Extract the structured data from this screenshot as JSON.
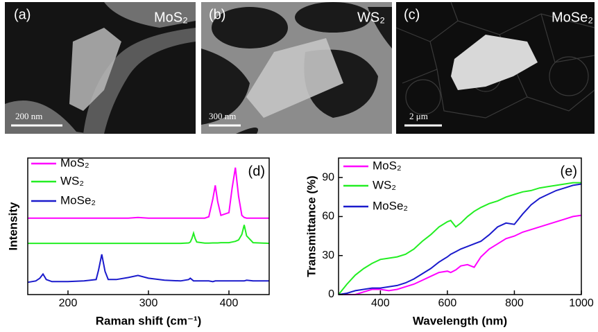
{
  "images": [
    {
      "label": "(a)",
      "material": "MoS₂",
      "scale_bar": "200 nm"
    },
    {
      "label": "(b)",
      "material": "WS₂",
      "scale_bar": "300 nm"
    },
    {
      "label": "(c)",
      "material": "MoSe₂",
      "scale_bar": "2 μm"
    }
  ],
  "chart_data": [
    {
      "type": "line",
      "panel_label": "(d)",
      "x_label": "Raman shift (cm⁻¹)",
      "y_label": "Intensity",
      "xlim": [
        150,
        450
      ],
      "xticks": [
        200,
        300,
        400
      ],
      "ylim": [
        0,
        1
      ],
      "legend": "upper-left",
      "x": [
        150,
        160,
        165,
        169,
        173,
        180,
        200,
        220,
        235,
        238,
        242,
        246,
        250,
        260,
        275,
        287,
        300,
        320,
        340,
        350,
        352,
        354,
        356,
        358,
        360,
        370,
        375,
        380,
        383,
        386,
        390,
        400,
        404,
        408,
        412,
        416,
        419,
        422,
        430,
        450
      ],
      "series": [
        {
          "name": "MoS₂",
          "color": "#ff00ff",
          "values": [
            0.56,
            0.56,
            0.56,
            0.56,
            0.56,
            0.56,
            0.56,
            0.56,
            0.56,
            0.56,
            0.56,
            0.56,
            0.56,
            0.56,
            0.56,
            0.565,
            0.56,
            0.56,
            0.56,
            0.56,
            0.56,
            0.56,
            0.56,
            0.56,
            0.56,
            0.56,
            0.57,
            0.7,
            0.8,
            0.68,
            0.58,
            0.6,
            0.78,
            0.93,
            0.72,
            0.58,
            0.565,
            0.56,
            0.56,
            0.56
          ]
        },
        {
          "name": "WS₂",
          "color": "#22ee22",
          "values": [
            0.375,
            0.375,
            0.375,
            0.375,
            0.375,
            0.375,
            0.375,
            0.375,
            0.375,
            0.375,
            0.375,
            0.375,
            0.375,
            0.375,
            0.375,
            0.375,
            0.375,
            0.375,
            0.375,
            0.378,
            0.385,
            0.41,
            0.45,
            0.41,
            0.385,
            0.377,
            0.377,
            0.378,
            0.378,
            0.378,
            0.38,
            0.38,
            0.385,
            0.39,
            0.4,
            0.44,
            0.51,
            0.43,
            0.38,
            0.375
          ]
        },
        {
          "name": "MoSe₂",
          "color": "#1a1acc",
          "values": [
            0.09,
            0.1,
            0.12,
            0.15,
            0.11,
            0.095,
            0.095,
            0.1,
            0.11,
            0.18,
            0.295,
            0.17,
            0.11,
            0.11,
            0.125,
            0.14,
            0.12,
            0.105,
            0.1,
            0.11,
            0.12,
            0.11,
            0.1,
            0.1,
            0.1,
            0.1,
            0.1,
            0.095,
            0.1,
            0.1,
            0.1,
            0.1,
            0.1,
            0.1,
            0.1,
            0.1,
            0.1,
            0.105,
            0.1,
            0.1
          ]
        }
      ]
    },
    {
      "type": "line",
      "panel_label": "(e)",
      "x_label": "Wavelength (nm)",
      "y_label": "Transmittance (%)",
      "xlim": [
        275,
        1000
      ],
      "xticks": [
        400,
        600,
        800,
        1000
      ],
      "ylim": [
        0,
        105
      ],
      "yticks": [
        0,
        30,
        60,
        90
      ],
      "legend": "upper-left",
      "x": [
        275,
        300,
        325,
        350,
        375,
        400,
        425,
        450,
        475,
        500,
        525,
        550,
        575,
        600,
        610,
        625,
        640,
        660,
        680,
        700,
        725,
        750,
        775,
        800,
        825,
        850,
        875,
        900,
        925,
        950,
        975,
        1000
      ],
      "series": [
        {
          "name": "MoS₂",
          "color": "#ff00ff",
          "values": [
            0,
            0,
            0,
            2,
            4,
            4,
            3,
            4,
            6,
            8,
            11,
            14,
            17,
            18,
            17,
            19,
            22,
            23,
            21,
            29,
            35,
            39,
            43,
            45,
            48,
            50,
            52,
            54,
            56,
            58,
            60,
            61
          ]
        },
        {
          "name": "WS₂",
          "color": "#22ee22",
          "values": [
            0,
            8,
            15,
            20,
            24,
            27,
            28,
            29,
            31,
            35,
            41,
            46,
            52,
            56,
            57,
            52,
            55,
            60,
            64,
            67,
            70,
            72,
            75,
            77,
            79,
            80,
            82,
            83,
            84,
            85,
            86,
            86
          ]
        },
        {
          "name": "MoSe₂",
          "color": "#1a1acc",
          "values": [
            0,
            1,
            3,
            4,
            5,
            5,
            6,
            7,
            9,
            12,
            16,
            20,
            25,
            29,
            31,
            33,
            35,
            37,
            39,
            41,
            46,
            52,
            55,
            54,
            62,
            69,
            74,
            77,
            80,
            82,
            84,
            85
          ]
        }
      ]
    }
  ]
}
